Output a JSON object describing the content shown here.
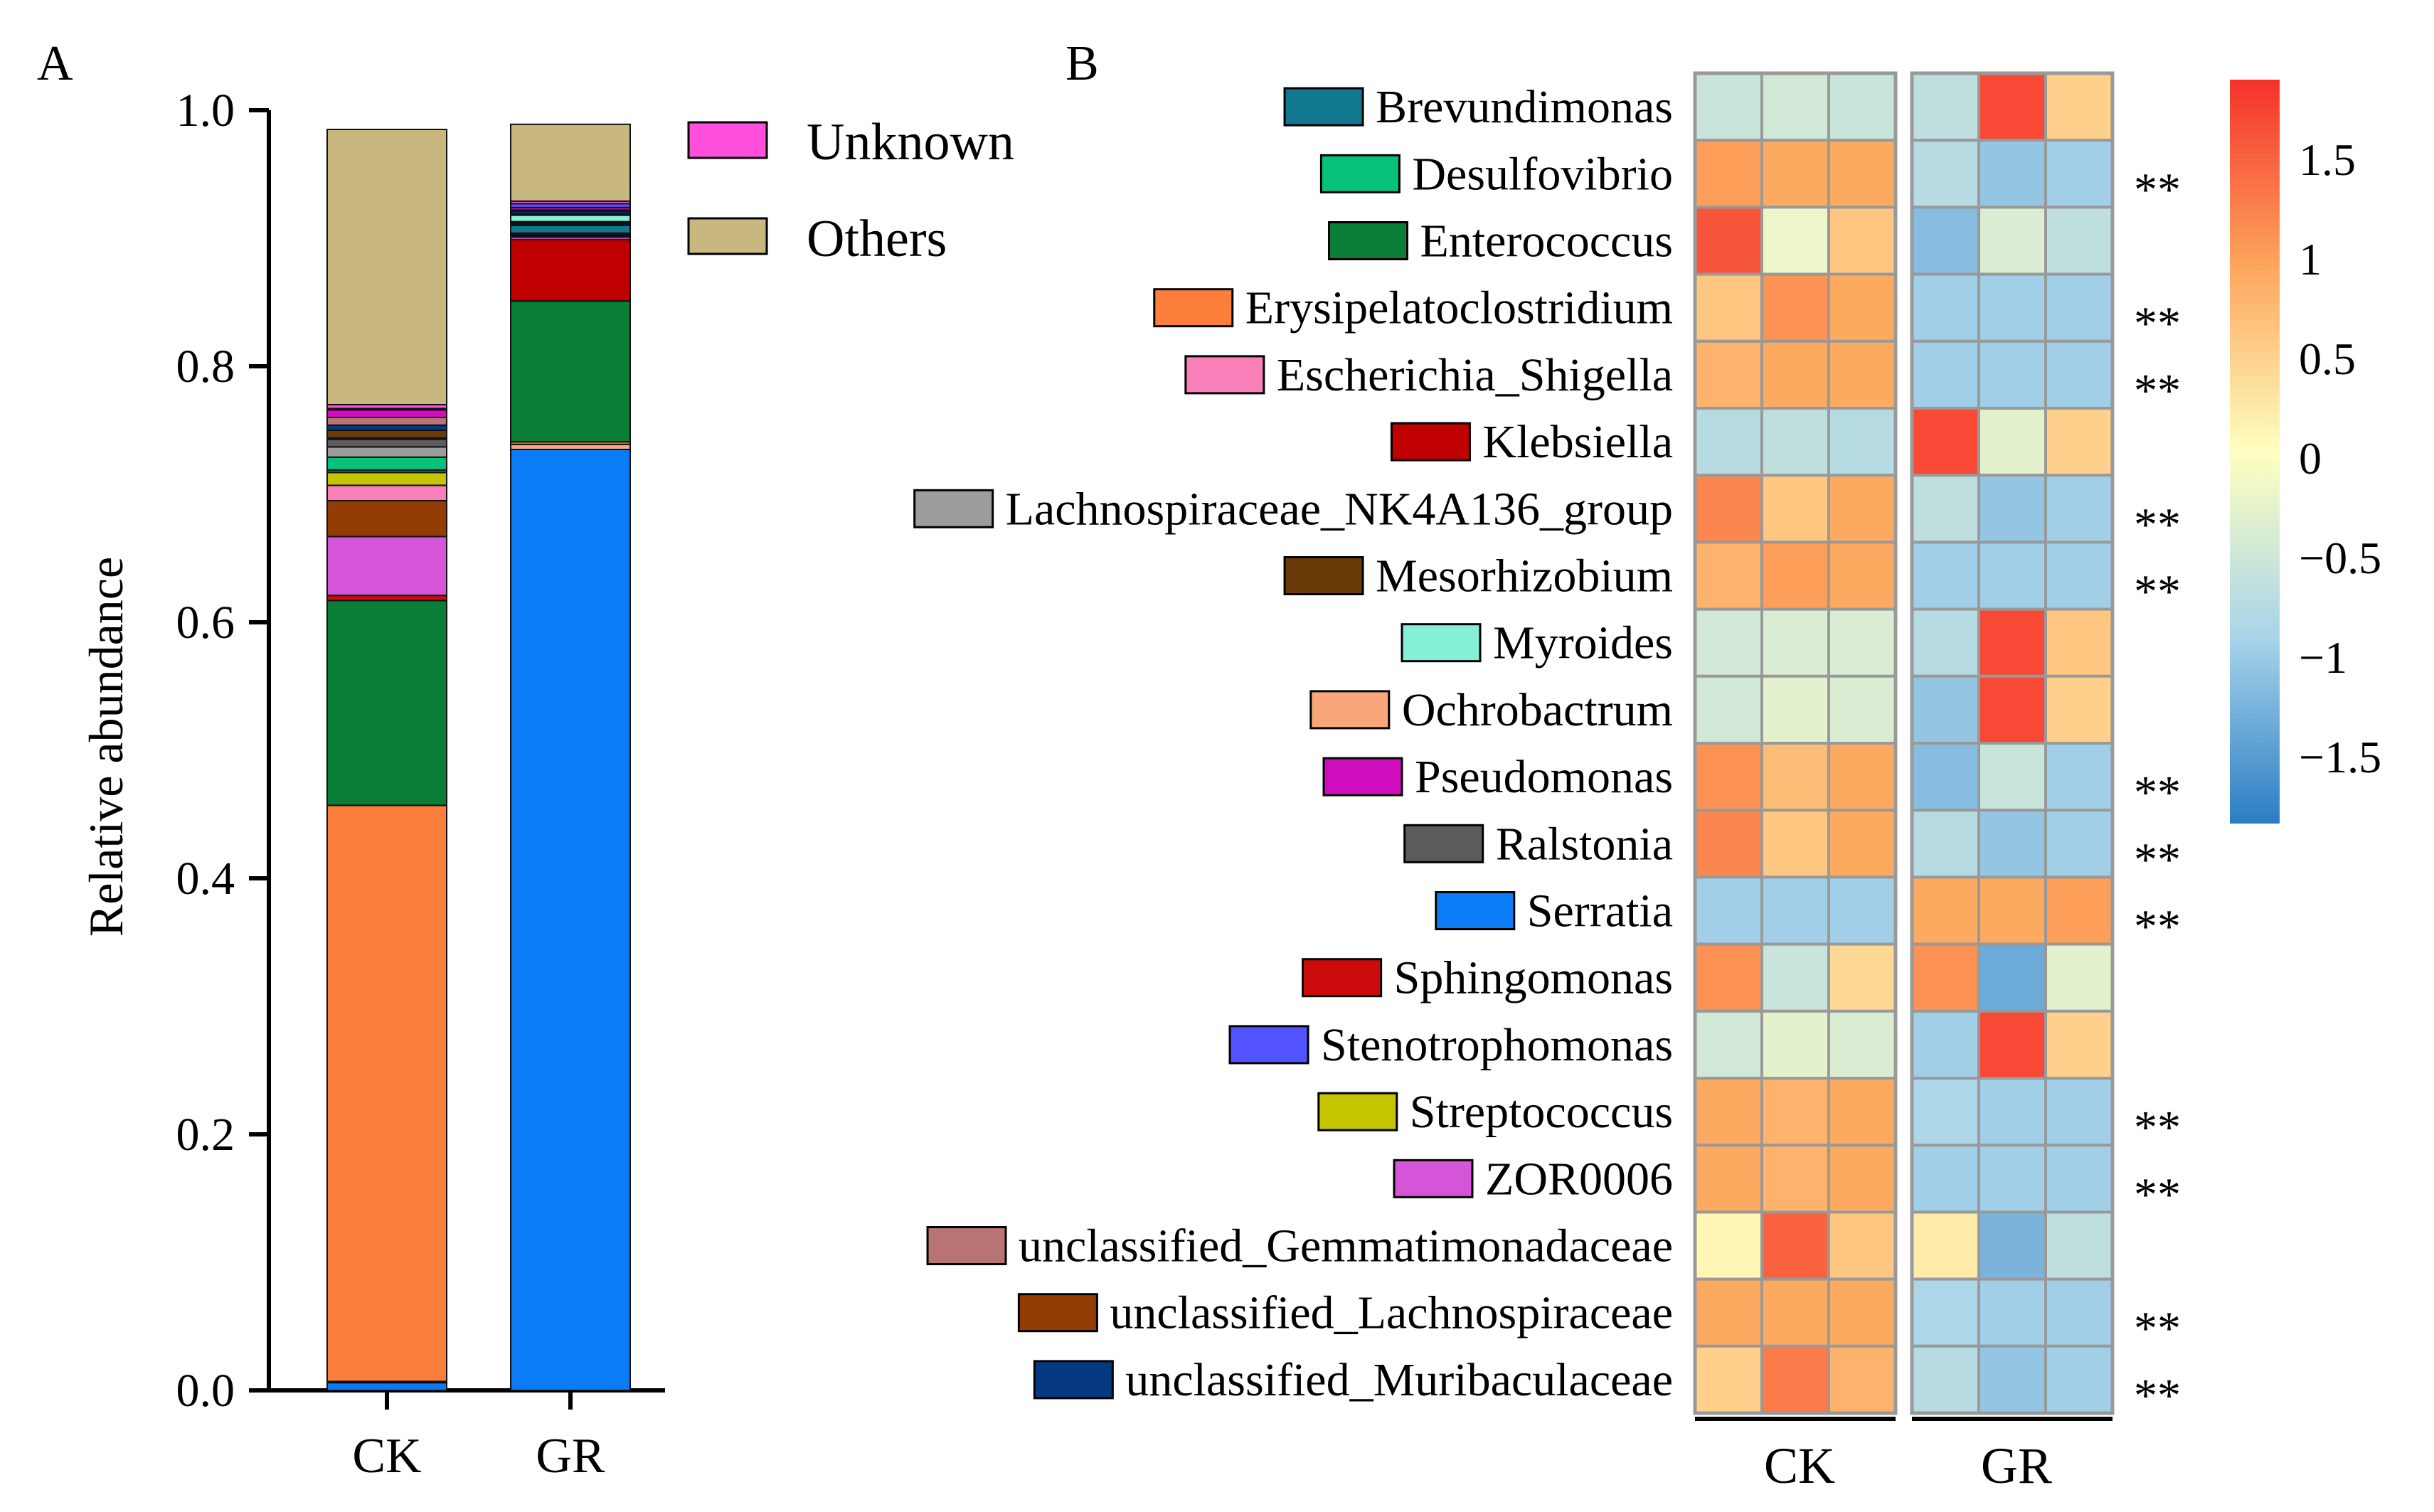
{
  "panel_a": {
    "panel_label": "A",
    "ylabel": "Relative abundance",
    "yticks": [
      "1.0",
      "0.8",
      "0.6",
      "0.4",
      "0.2",
      "0.0"
    ],
    "legend": [
      {
        "label": "Unknown",
        "color": "#ff4fdc"
      },
      {
        "label": "Others",
        "color": "#c8b880"
      }
    ]
  },
  "panel_b": {
    "panel_label": "B",
    "group_labels": [
      "CK",
      "GR"
    ],
    "colorbar_ticks": [
      "1.5",
      "1",
      "0.5",
      "0",
      "−0.5",
      "−1",
      "−1.5"
    ],
    "sig_marker": "**"
  },
  "chart_data": [
    {
      "type": "bar",
      "stacked": true,
      "title": "",
      "xlabel": "",
      "ylabel": "Relative abundance",
      "ylim": [
        0,
        1.0
      ],
      "yticks": [
        0.0,
        0.2,
        0.4,
        0.6,
        0.8,
        1.0
      ],
      "categories": [
        "CK",
        "GR"
      ],
      "series": [
        {
          "name": "Serratia",
          "color": "#0a7cf5",
          "values": [
            0.006,
            0.735
          ]
        },
        {
          "name": "Ochrobactrum",
          "color": "#f9a77a",
          "values": [
            0.001,
            0.004
          ]
        },
        {
          "name": "Erysipelatoclostridium",
          "color": "#fb7f3b",
          "values": [
            0.45,
            0.002
          ]
        },
        {
          "name": "Enterococcus",
          "color": "#0a7d37",
          "values": [
            0.16,
            0.11
          ]
        },
        {
          "name": "Sphingomonas",
          "color": "#cc0c0c",
          "values": [
            0.004,
            0.0
          ]
        },
        {
          "name": "Klebsiella",
          "color": "#c00000",
          "values": [
            0.0,
            0.048
          ]
        },
        {
          "name": "ZOR0006",
          "color": "#d455d8",
          "values": [
            0.046,
            0.002
          ]
        },
        {
          "name": "unclassified_Lachnospiraceae",
          "color": "#933d05",
          "values": [
            0.028,
            0.001
          ]
        },
        {
          "name": "Escherichia_Shigella",
          "color": "#f97fb9",
          "values": [
            0.012,
            0.001
          ]
        },
        {
          "name": "Streptococcus",
          "color": "#c4c400",
          "values": [
            0.01,
            0.001
          ]
        },
        {
          "name": "Brevundimonas",
          "color": "#127892",
          "values": [
            0.002,
            0.006
          ]
        },
        {
          "name": "Desulfovibrio",
          "color": "#06c27b",
          "values": [
            0.01,
            0.001
          ]
        },
        {
          "name": "Lachnospiraceae_NK4A136_group",
          "color": "#9c9c9c",
          "values": [
            0.008,
            0.001
          ]
        },
        {
          "name": "Ralstonia",
          "color": "#5c5c5c",
          "values": [
            0.006,
            0.001
          ]
        },
        {
          "name": "Myroides",
          "color": "#85f0d6",
          "values": [
            0.001,
            0.005
          ]
        },
        {
          "name": "Mesorhizobium",
          "color": "#6a3b09",
          "values": [
            0.006,
            0.001
          ]
        },
        {
          "name": "unclassified_Muribaculaceae",
          "color": "#053a82",
          "values": [
            0.004,
            0.002
          ]
        },
        {
          "name": "unclassified_Gemmatimonadaceae",
          "color": "#b87474",
          "values": [
            0.006,
            0.001
          ]
        },
        {
          "name": "Pseudomonas",
          "color": "#d00ec0",
          "values": [
            0.006,
            0.002
          ]
        },
        {
          "name": "Stenotrophomonas",
          "color": "#5353ff",
          "values": [
            0.001,
            0.003
          ]
        },
        {
          "name": "Unknown",
          "color": "#ff4fdc",
          "values": [
            0.003,
            0.002
          ]
        },
        {
          "name": "Others",
          "color": "#c8b880",
          "values": [
            0.215,
            0.06
          ]
        }
      ]
    },
    {
      "type": "heatmap",
      "title": "",
      "columns": [
        "CK",
        "CK",
        "CK",
        "GR",
        "GR",
        "GR"
      ],
      "groups": [
        "CK",
        "GR"
      ],
      "colorbar": {
        "min": -1.9,
        "max": 1.9,
        "ticks": [
          1.5,
          1,
          0.5,
          0,
          -0.5,
          -1,
          -1.5
        ]
      },
      "rows": [
        {
          "name": "Brevundimonas",
          "color": "#127892",
          "values": [
            -0.6,
            -0.5,
            -0.6,
            -0.7,
            1.7,
            0.5
          ],
          "sig": ""
        },
        {
          "name": "Desulfovibrio",
          "color": "#06c27b",
          "values": [
            1.0,
            0.9,
            0.9,
            -0.8,
            -1.1,
            -1.0
          ],
          "sig": "**"
        },
        {
          "name": "Enterococcus",
          "color": "#0a7d37",
          "values": [
            1.6,
            -0.2,
            0.6,
            -1.2,
            -0.4,
            -0.7
          ],
          "sig": ""
        },
        {
          "name": "Erysipelatoclostridium",
          "color": "#fb7f3b",
          "values": [
            0.6,
            1.1,
            0.9,
            -1.0,
            -1.0,
            -1.0
          ],
          "sig": "**"
        },
        {
          "name": "Escherichia_Shigella",
          "color": "#f97fb9",
          "values": [
            0.8,
            0.9,
            0.9,
            -1.0,
            -1.0,
            -1.0
          ],
          "sig": "**"
        },
        {
          "name": "Klebsiella",
          "color": "#c00000",
          "values": [
            -0.8,
            -0.7,
            -0.8,
            1.7,
            -0.3,
            0.5
          ],
          "sig": ""
        },
        {
          "name": "Lachnospiraceae_NK4A136_group",
          "color": "#9c9c9c",
          "values": [
            1.2,
            0.6,
            0.9,
            -0.7,
            -1.1,
            -1.0
          ],
          "sig": "**"
        },
        {
          "name": "Mesorhizobium",
          "color": "#6a3b09",
          "values": [
            0.8,
            1.0,
            0.9,
            -1.0,
            -1.0,
            -1.0
          ],
          "sig": "**"
        },
        {
          "name": "Myroides",
          "color": "#85f0d6",
          "values": [
            -0.5,
            -0.4,
            -0.4,
            -0.8,
            1.7,
            0.6
          ],
          "sig": ""
        },
        {
          "name": "Ochrobactrum",
          "color": "#f9a77a",
          "values": [
            -0.5,
            -0.3,
            -0.4,
            -1.1,
            1.7,
            0.5
          ],
          "sig": ""
        },
        {
          "name": "Pseudomonas",
          "color": "#d00ec0",
          "values": [
            1.1,
            0.7,
            0.9,
            -1.2,
            -0.6,
            -1.0
          ],
          "sig": "**"
        },
        {
          "name": "Ralstonia",
          "color": "#5c5c5c",
          "values": [
            1.2,
            0.6,
            0.9,
            -0.8,
            -1.1,
            -1.0
          ],
          "sig": "**"
        },
        {
          "name": "Serratia",
          "color": "#0a7cf5",
          "values": [
            -1.0,
            -1.0,
            -1.0,
            0.9,
            0.9,
            1.0
          ],
          "sig": "**"
        },
        {
          "name": "Sphingomonas",
          "color": "#cc0c0c",
          "values": [
            1.1,
            -0.6,
            0.4,
            1.1,
            -1.4,
            -0.3
          ],
          "sig": ""
        },
        {
          "name": "Stenotrophomonas",
          "color": "#5353ff",
          "values": [
            -0.5,
            -0.3,
            -0.4,
            -1.0,
            1.7,
            0.5
          ],
          "sig": ""
        },
        {
          "name": "Streptococcus",
          "color": "#c4c400",
          "values": [
            0.9,
            0.8,
            0.9,
            -0.9,
            -1.0,
            -1.0
          ],
          "sig": "**"
        },
        {
          "name": "ZOR0006",
          "color": "#d455d8",
          "values": [
            0.9,
            0.8,
            0.9,
            -1.0,
            -1.0,
            -1.0
          ],
          "sig": "**"
        },
        {
          "name": "unclassified_Gemmatimonadaceae",
          "color": "#b87474",
          "values": [
            0.1,
            1.5,
            0.6,
            0.2,
            -1.3,
            -0.7
          ],
          "sig": ""
        },
        {
          "name": "unclassified_Lachnospiraceae",
          "color": "#933d05",
          "values": [
            0.9,
            0.9,
            0.9,
            -0.9,
            -1.0,
            -1.0
          ],
          "sig": "**"
        },
        {
          "name": "unclassified_Muribaculaceae",
          "color": "#053a82",
          "values": [
            0.5,
            1.3,
            0.8,
            -0.8,
            -1.1,
            -1.0
          ],
          "sig": "**"
        }
      ]
    }
  ]
}
